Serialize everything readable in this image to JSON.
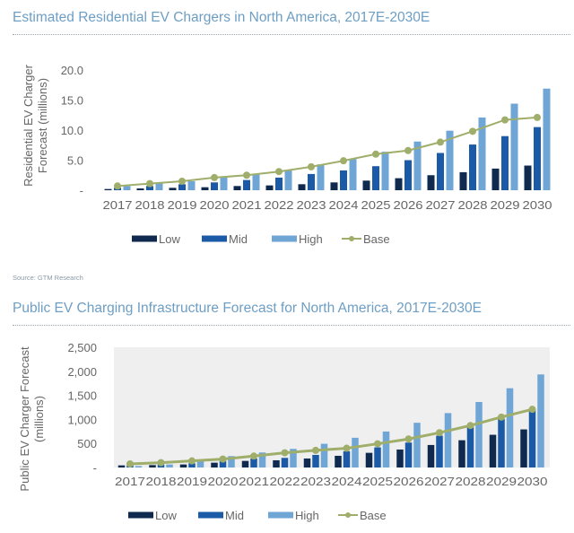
{
  "colors": {
    "low": "#0f2a4e",
    "mid": "#1a5aa6",
    "high": "#6fa6d6",
    "base": "#9fae6a",
    "title": "#6d9ec4",
    "plot_bg": "#efefef"
  },
  "source1": "Source: GTM Research",
  "chart_data": [
    {
      "type": "bar",
      "title": "Estimated Residential EV Chargers in North America, 2017E-2030E",
      "xlabel": "",
      "ylabel": "Residential EV Charger Forecast (millions)",
      "ylabel_lines": [
        "Residential EV Charger",
        "Forecast (millions)"
      ],
      "ylim": [
        0,
        20
      ],
      "yticks": [
        0,
        5,
        10,
        15,
        20
      ],
      "ytick_labels": [
        "-",
        "5.0",
        "10.0",
        "15.0",
        "20.0"
      ],
      "categories": [
        "2017",
        "2018",
        "2019",
        "2020",
        "2021",
        "2022",
        "2023",
        "2024",
        "2025",
        "2026",
        "2027",
        "2028",
        "2029",
        "2030"
      ],
      "series": [
        {
          "name": "Low",
          "kind": "bar",
          "values": [
            0.2,
            0.3,
            0.4,
            0.5,
            0.7,
            0.8,
            1.0,
            1.3,
            1.6,
            2.0,
            2.5,
            3.0,
            3.6,
            4.1
          ]
        },
        {
          "name": "Mid",
          "kind": "bar",
          "values": [
            0.4,
            0.7,
            1.0,
            1.3,
            1.7,
            2.1,
            2.7,
            3.3,
            4.0,
            5.0,
            6.2,
            7.6,
            9.0,
            10.5
          ]
        },
        {
          "name": "High",
          "kind": "bar",
          "values": [
            0.7,
            1.2,
            1.5,
            2.2,
            2.7,
            3.3,
            4.3,
            5.2,
            6.4,
            8.1,
            9.9,
            12.1,
            14.4,
            16.9
          ]
        },
        {
          "name": "Base",
          "kind": "line",
          "values": [
            0.7,
            1.1,
            1.5,
            2.1,
            2.5,
            3.1,
            3.9,
            4.9,
            6.0,
            6.6,
            8.0,
            9.8,
            11.7,
            12.1
          ]
        }
      ],
      "legend": [
        "Low",
        "Mid",
        "High",
        "Base"
      ],
      "legend_position": "bottom",
      "grid": false
    },
    {
      "type": "bar",
      "title": "Public EV Charging Infrastructure Forecast for North America, 2017E-2030E",
      "xlabel": "",
      "ylabel": "Public EV Charger Forecast (millions)",
      "ylabel_lines": [
        "Public EV Charger Forecast",
        "(millions)"
      ],
      "ylim": [
        0,
        2500
      ],
      "yticks": [
        0,
        500,
        1000,
        1500,
        2000,
        2500
      ],
      "ytick_labels": [
        "-",
        "500",
        "1,000",
        "1,500",
        "2,000",
        "2,500"
      ],
      "categories": [
        "2017",
        "2018",
        "2019",
        "2020",
        "2021",
        "2022",
        "2023",
        "2024",
        "2025",
        "2026",
        "2027",
        "2028",
        "2029",
        "2030"
      ],
      "series": [
        {
          "name": "Low",
          "kind": "bar",
          "values": [
            44,
            50,
            63,
            100,
            137,
            150,
            187,
            243,
            305,
            374,
            468,
            567,
            680,
            792
          ]
        },
        {
          "name": "Mid",
          "kind": "bar",
          "values": [
            44,
            63,
            88,
            137,
            187,
            200,
            262,
            337,
            418,
            518,
            661,
            836,
            1010,
            1198
          ]
        },
        {
          "name": "High",
          "kind": "bar",
          "values": [
            30,
            63,
            150,
            237,
            312,
            387,
            493,
            618,
            748,
            930,
            1131,
            1362,
            1648,
            1935
          ]
        },
        {
          "name": "Base",
          "kind": "line",
          "values": [
            75,
            100,
            137,
            175,
            237,
            306,
            356,
            400,
            493,
            593,
            724,
            873,
            1048,
            1210
          ]
        }
      ],
      "legend": [
        "Low",
        "Mid",
        "High",
        "Base"
      ],
      "legend_position": "bottom",
      "grid": false
    }
  ]
}
